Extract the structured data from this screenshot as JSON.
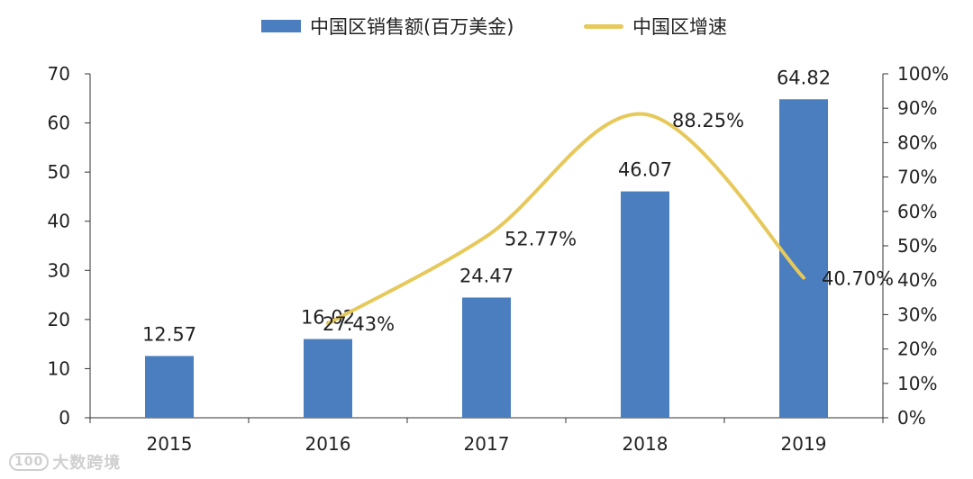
{
  "chart_data": {
    "type": "bar+line",
    "categories": [
      "2015",
      "2016",
      "2017",
      "2018",
      "2019"
    ],
    "series": [
      {
        "name": "中国区销售额(百万美金)",
        "type": "bar",
        "axis": "left",
        "values": [
          12.57,
          16.02,
          24.47,
          46.07,
          64.82
        ],
        "labels": [
          "12.57",
          "16.02",
          "24.47",
          "46.07",
          "64.82"
        ],
        "color": "#4a7ebf"
      },
      {
        "name": "中国区增速",
        "type": "line",
        "axis": "right",
        "smooth": true,
        "x": [
          "2016",
          "2017",
          "2018",
          "2019"
        ],
        "values": [
          27.43,
          52.77,
          88.25,
          40.7
        ],
        "labels": [
          "27.43%",
          "52.77%",
          "88.25%",
          "40.70%"
        ],
        "color": "#e6c95a"
      }
    ],
    "y_left": {
      "min": 0,
      "max": 70,
      "ticks": [
        "0",
        "10",
        "20",
        "30",
        "40",
        "50",
        "60",
        "70"
      ]
    },
    "y_right": {
      "min": 0,
      "max": 100,
      "ticks": [
        "0%",
        "10%",
        "20%",
        "30%",
        "40%",
        "50%",
        "60%",
        "70%",
        "80%",
        "90%",
        "100%"
      ]
    },
    "grid": false,
    "legend": "top"
  },
  "watermark": {
    "logo": "100",
    "text": "大数跨境"
  }
}
